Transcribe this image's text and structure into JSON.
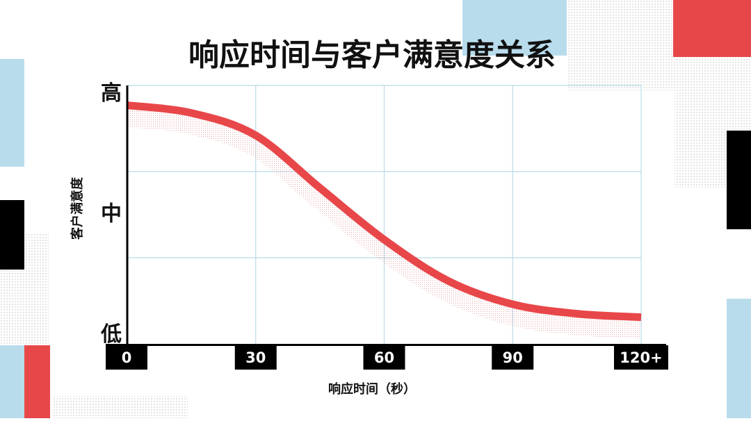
{
  "chart_data": {
    "type": "line",
    "title": "响应时间与客户满意度关系",
    "x_label": "响应时间（秒）",
    "y_label": "客户满意度",
    "x": [
      0,
      15,
      30,
      45,
      60,
      75,
      90,
      105,
      120
    ],
    "values": [
      2.77,
      2.68,
      2.42,
      1.81,
      1.21,
      0.73,
      0.46,
      0.35,
      0.31
    ],
    "color": "#e8474a",
    "xlim": [
      0,
      120
    ],
    "xticks": [
      0,
      30,
      60,
      90,
      {
        "value": 120,
        "label": "120+"
      }
    ],
    "ylim": [
      0,
      3
    ],
    "yticks": [
      {
        "value": 0.1,
        "label": "低"
      },
      {
        "value": 1.5,
        "label": "中"
      },
      {
        "value": 2.9,
        "label": "高"
      }
    ],
    "ygrid": [
      1,
      2,
      3
    ],
    "grid": true
  }
}
